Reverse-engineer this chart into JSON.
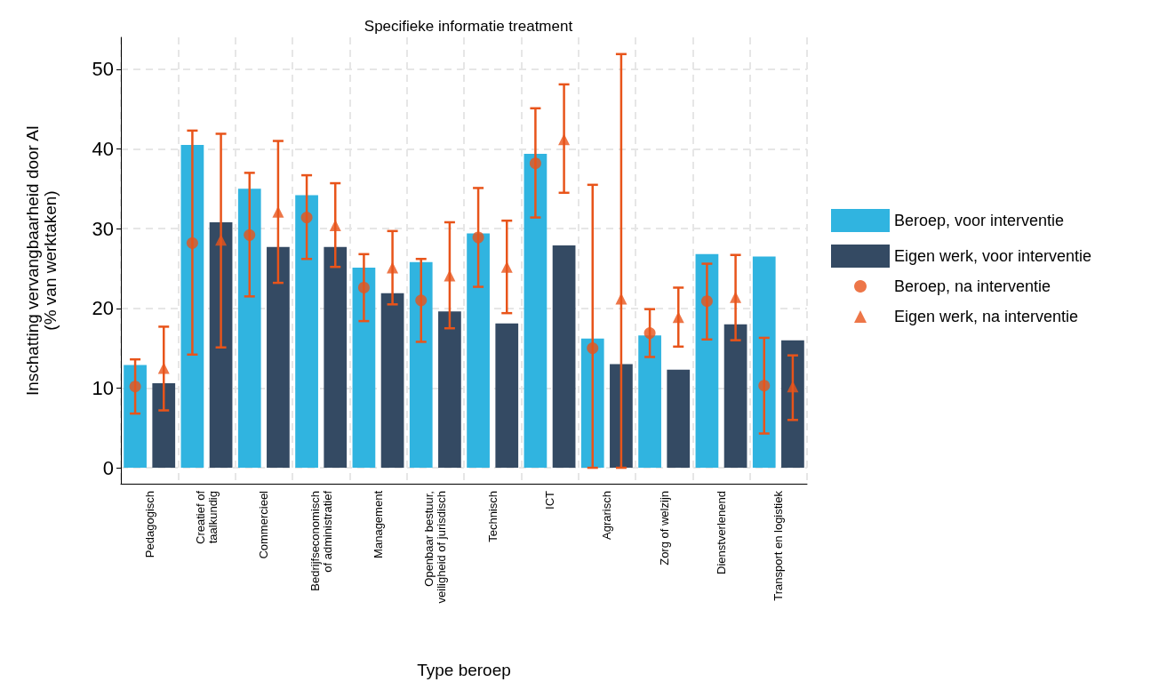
{
  "chart_data": {
    "type": "bar",
    "title": "Specifieke informatie treatment",
    "xlabel": "Type beroep",
    "ylabel": "Inschatting vervangbaarheid door AI\n(% van werktaken)",
    "categories": [
      "Pedagogisch",
      "Creatief of\ntaalkundig",
      "Commercieel",
      "Bedrijfseconomisch\nof administratief",
      "Management",
      "Openbaar bestuur,\nveiligheid of jurisdisch",
      "Technisch",
      "ICT",
      "Agrarisch",
      "Zorg of welzijn",
      "Dienstverlenend",
      "Transport en logistiek"
    ],
    "series": [
      {
        "name": "Beroep, voor interventie",
        "color": "#30b4e0",
        "values": [
          12.9,
          40.5,
          35.0,
          34.2,
          25.1,
          25.8,
          29.4,
          39.4,
          16.2,
          16.6,
          26.8,
          26.5
        ]
      },
      {
        "name": "Eigen werk, voor interventie",
        "color": "#344a63",
        "values": [
          10.6,
          30.8,
          27.7,
          27.7,
          21.9,
          19.6,
          18.1,
          27.9,
          13.0,
          12.3,
          18.0,
          16.0
        ]
      },
      {
        "name": "Beroep, na interventie",
        "type": "scatter",
        "marker": "circle",
        "color": "#e8541a",
        "values": [
          10.2,
          28.2,
          29.2,
          31.4,
          22.6,
          21.0,
          28.9,
          38.2,
          15.0,
          16.9,
          20.9,
          10.3
        ],
        "errors": [
          [
            6.8,
            13.6
          ],
          [
            14.2,
            42.3
          ],
          [
            21.5,
            37.0
          ],
          [
            26.2,
            36.7
          ],
          [
            18.4,
            26.8
          ],
          [
            15.8,
            26.2
          ],
          [
            22.7,
            35.1
          ],
          [
            31.4,
            45.1
          ],
          [
            0,
            35.5
          ],
          [
            13.9,
            19.9
          ],
          [
            16.1,
            25.6
          ],
          [
            4.3,
            16.3
          ]
        ]
      },
      {
        "name": "Eigen werk, na interventie",
        "type": "scatter",
        "marker": "triangle",
        "color": "#e8541a",
        "values": [
          12.5,
          28.6,
          32.1,
          30.4,
          25.1,
          24.1,
          25.2,
          41.2,
          21.2,
          18.9,
          21.4,
          10.2
        ],
        "errors": [
          [
            7.2,
            17.7
          ],
          [
            15.1,
            41.9
          ],
          [
            23.2,
            41.0
          ],
          [
            25.2,
            35.7
          ],
          [
            20.5,
            29.7
          ],
          [
            17.5,
            30.8
          ],
          [
            19.4,
            31.0
          ],
          [
            34.5,
            48.1
          ],
          [
            0,
            51.9
          ],
          [
            15.2,
            22.6
          ],
          [
            16.0,
            26.7
          ],
          [
            6.0,
            14.1
          ]
        ]
      }
    ],
    "ylim": [
      -2,
      54
    ],
    "yticks": [
      0,
      10,
      20,
      30,
      40,
      50
    ],
    "grid": true,
    "legend": "right"
  }
}
